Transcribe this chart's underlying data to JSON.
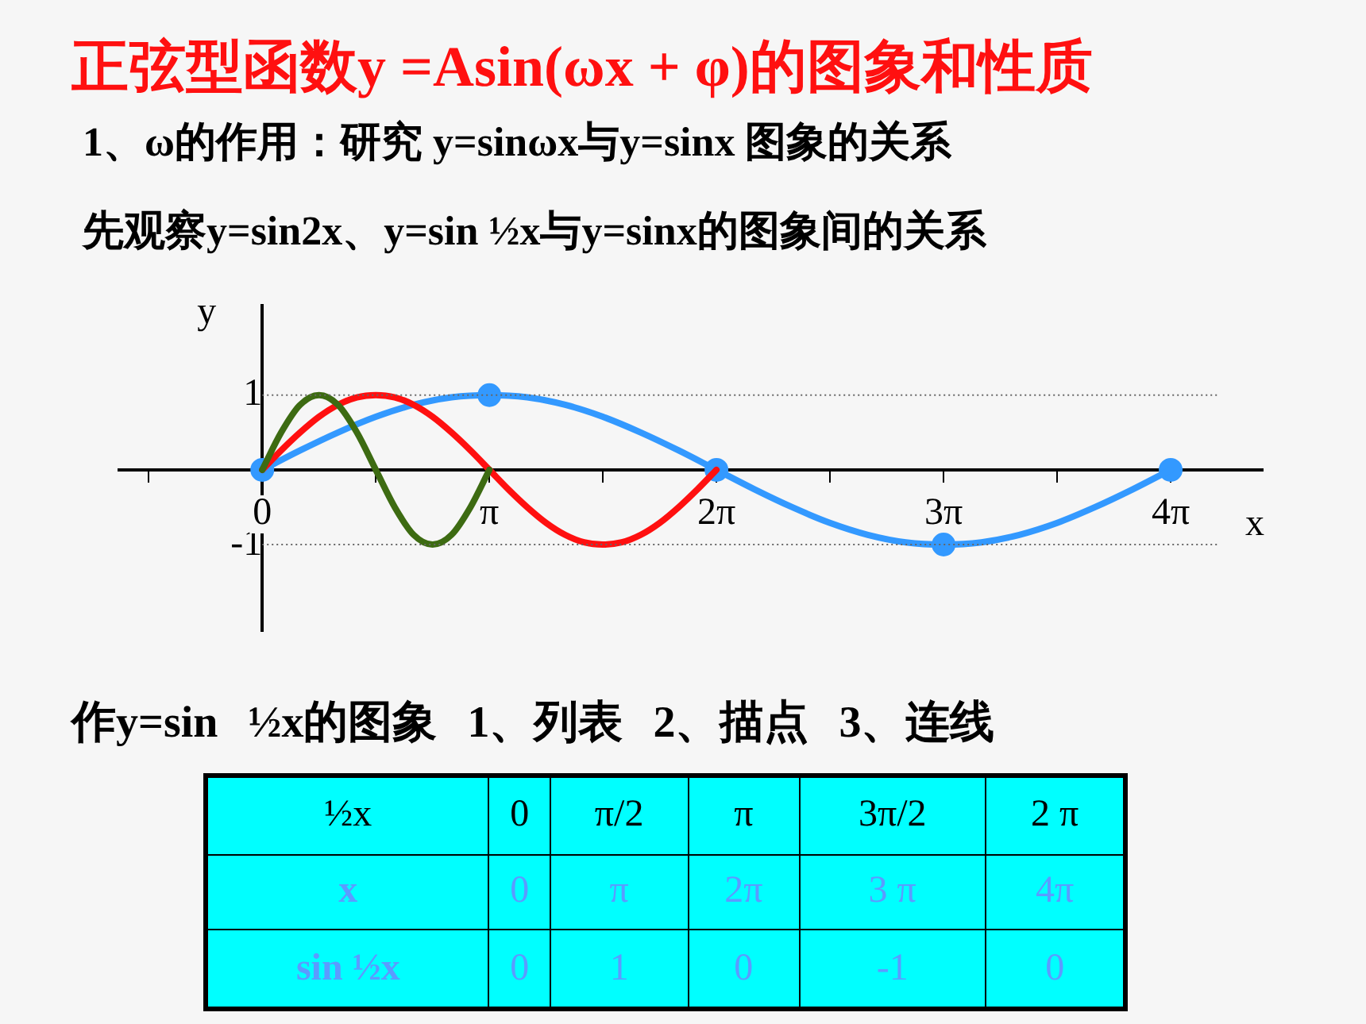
{
  "chart_data": {
    "type": "line",
    "title": "正弦型函数y =Asin(ωx + φ)的图象和性质",
    "subtitle": "1、ω的作用：研究 y=sinωx与y=sinx 图象的关系",
    "xlabel": "x",
    "ylabel": "y",
    "annotations": [
      "先观察y=sin2x、y=sin ½x与y=sinx的图象间的关系",
      "作y=sin ½x的图象 1、列表 2、描点 3、连线",
      "½x",
      "0",
      "π/2",
      "π",
      "3π/2",
      "2 π",
      "x",
      "0",
      "π",
      "2π",
      "3 π",
      "4π",
      "sin ½x",
      "0",
      "1",
      "0",
      "-1",
      "0"
    ],
    "xlim": [
      -1.98,
      13.84
    ],
    "xticks": [
      {
        "value": -1.571,
        "label": null
      },
      {
        "value": 0,
        "label": "0"
      },
      {
        "value": 1.571,
        "label": null
      },
      {
        "value": 3.142,
        "label": "π"
      },
      {
        "value": 4.712,
        "label": null
      },
      {
        "value": 6.283,
        "label": "2π"
      },
      {
        "value": 7.854,
        "label": null
      },
      {
        "value": 9.425,
        "label": "3π"
      },
      {
        "value": 10.996,
        "label": null
      },
      {
        "value": 12.566,
        "label": "4π"
      }
    ],
    "ylim": [
      -2.16,
      2.2
    ],
    "yticks": [
      -1,
      1
    ],
    "grid": "y",
    "legend": false,
    "series": [
      {
        "color": "#3d6b12",
        "marker": "none",
        "x": [
          0,
          0.262,
          0.524,
          0.785,
          1.047,
          1.309,
          1.571,
          1.833,
          2.094,
          2.356,
          2.618,
          2.88,
          3.142
        ],
        "values": [
          0,
          0.5,
          0.87,
          1,
          0.87,
          0.5,
          0,
          -0.5,
          -0.87,
          -1,
          -0.87,
          -0.5,
          0
        ]
      },
      {
        "color": "#ff1010",
        "marker": "none",
        "x": [
          0,
          0.262,
          0.524,
          0.785,
          1.047,
          1.309,
          1.571,
          1.833,
          2.094,
          2.356,
          2.618,
          2.88,
          3.142,
          3.403,
          3.665,
          3.927,
          4.189,
          4.451,
          4.712,
          4.974,
          5.236,
          5.498,
          5.76,
          6.021,
          6.283
        ],
        "values": [
          0,
          0.26,
          0.5,
          0.71,
          0.87,
          0.97,
          1,
          0.97,
          0.87,
          0.71,
          0.5,
          0.26,
          0,
          -0.26,
          -0.5,
          -0.71,
          -0.87,
          -0.97,
          -1,
          -0.97,
          -0.87,
          -0.71,
          -0.5,
          -0.26,
          0
        ]
      },
      {
        "color": "#3399ff",
        "marker": "none",
        "x": [
          0,
          0.524,
          1.047,
          1.571,
          2.094,
          2.618,
          3.142,
          3.665,
          4.189,
          4.712,
          5.236,
          5.76,
          6.283,
          6.807,
          7.33,
          7.854,
          8.378,
          8.901,
          9.425,
          9.948,
          10.472,
          10.996,
          11.519,
          12.043,
          12.566
        ],
        "values": [
          0,
          0.26,
          0.5,
          0.71,
          0.87,
          0.97,
          1,
          0.97,
          0.87,
          0.71,
          0.5,
          0.26,
          0,
          -0.26,
          -0.5,
          -0.71,
          -0.87,
          -0.97,
          -1,
          -0.97,
          -0.87,
          -0.71,
          -0.5,
          -0.26,
          0
        ]
      },
      {
        "type": "scatter",
        "color": "#3399ff",
        "marker": "circle",
        "x": [
          0,
          3.142,
          6.283,
          9.425,
          12.566
        ],
        "values": [
          0,
          1,
          0,
          -1,
          0
        ]
      }
    ]
  }
}
